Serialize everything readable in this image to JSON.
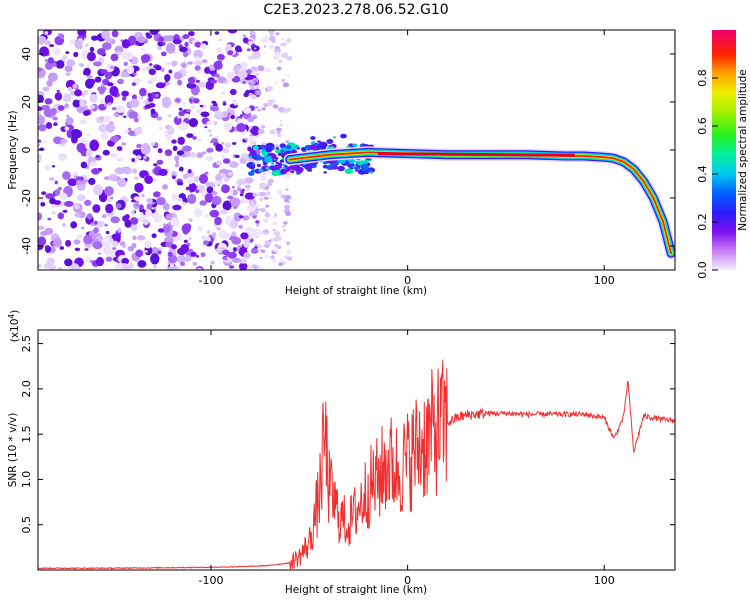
{
  "title": "C2E3.2023.278.06.52.G10",
  "chart_data": [
    {
      "type": "heatmap",
      "xlabel": "Height of straight line (km)",
      "ylabel": "Frequency (Hz)",
      "xlim": [
        -188,
        136
      ],
      "ylim": [
        -50,
        50
      ],
      "x_ticks": [
        -100,
        0,
        100
      ],
      "y_ticks": [
        -40,
        -20,
        0,
        20,
        40
      ],
      "x_tick_labels": [
        "-100",
        "0",
        "100"
      ],
      "y_tick_labels": [
        "-40",
        "-20",
        "0",
        "20",
        "40"
      ],
      "colorbar": {
        "label": "Normalized spectral amplitude",
        "range": [
          0,
          1
        ],
        "ticks": [
          0,
          0.2,
          0.4,
          0.6,
          0.8
        ],
        "tick_labels": [
          "0.0",
          "0.2",
          "0.4",
          "0.6",
          "0.8"
        ]
      },
      "ridge": {
        "x": [
          -60,
          -40,
          -20,
          0,
          20,
          40,
          60,
          80,
          90,
          100,
          105,
          110,
          115,
          120,
          125,
          130,
          134
        ],
        "y": [
          -4,
          -2,
          -1,
          -1.5,
          -2,
          -2,
          -2,
          -2.5,
          -2.5,
          -3,
          -3.5,
          -5,
          -8,
          -13,
          -20,
          -30,
          -43
        ]
      },
      "grid": false
    },
    {
      "type": "line",
      "xlabel": "Height of straight line (km)",
      "ylabel": "SNR (10 * v/v)",
      "y_multiplier": "(x10",
      "y_multiplier_exp": "4",
      "y_multiplier_close": ")",
      "xlim": [
        -188,
        136
      ],
      "ylim": [
        0,
        2.65
      ],
      "x_ticks": [
        -100,
        0,
        100
      ],
      "x_tick_labels": [
        "-100",
        "0",
        "100"
      ],
      "y_ticks": [
        0.5,
        1.0,
        1.5,
        2.0,
        2.5
      ],
      "y_tick_labels": [
        "0.5",
        "1.0",
        "1.5",
        "2.0",
        "2.5"
      ],
      "color": "#f03030",
      "series": [
        {
          "x": [
            -188,
            -150,
            -100,
            -80,
            -70,
            -60,
            -55,
            -50,
            -45,
            -42,
            -40,
            -35,
            -30,
            -25,
            -20,
            -15,
            -10,
            -5,
            0,
            5,
            10,
            15,
            20,
            25,
            30,
            35,
            40,
            50,
            60,
            70,
            80,
            90,
            100,
            105,
            110,
            112,
            115,
            120,
            125,
            130,
            136
          ],
          "values": [
            0.02,
            0.02,
            0.03,
            0.04,
            0.05,
            0.08,
            0.15,
            0.3,
            0.8,
            1.5,
            0.9,
            0.6,
            0.5,
            0.7,
            0.9,
            1.0,
            1.2,
            1.1,
            1.2,
            1.35,
            1.45,
            1.55,
            1.62,
            1.68,
            1.71,
            1.72,
            1.73,
            1.73,
            1.72,
            1.72,
            1.72,
            1.72,
            1.68,
            1.45,
            1.7,
            2.1,
            1.3,
            1.7,
            1.68,
            1.66,
            1.65
          ]
        }
      ],
      "grid": false
    }
  ]
}
